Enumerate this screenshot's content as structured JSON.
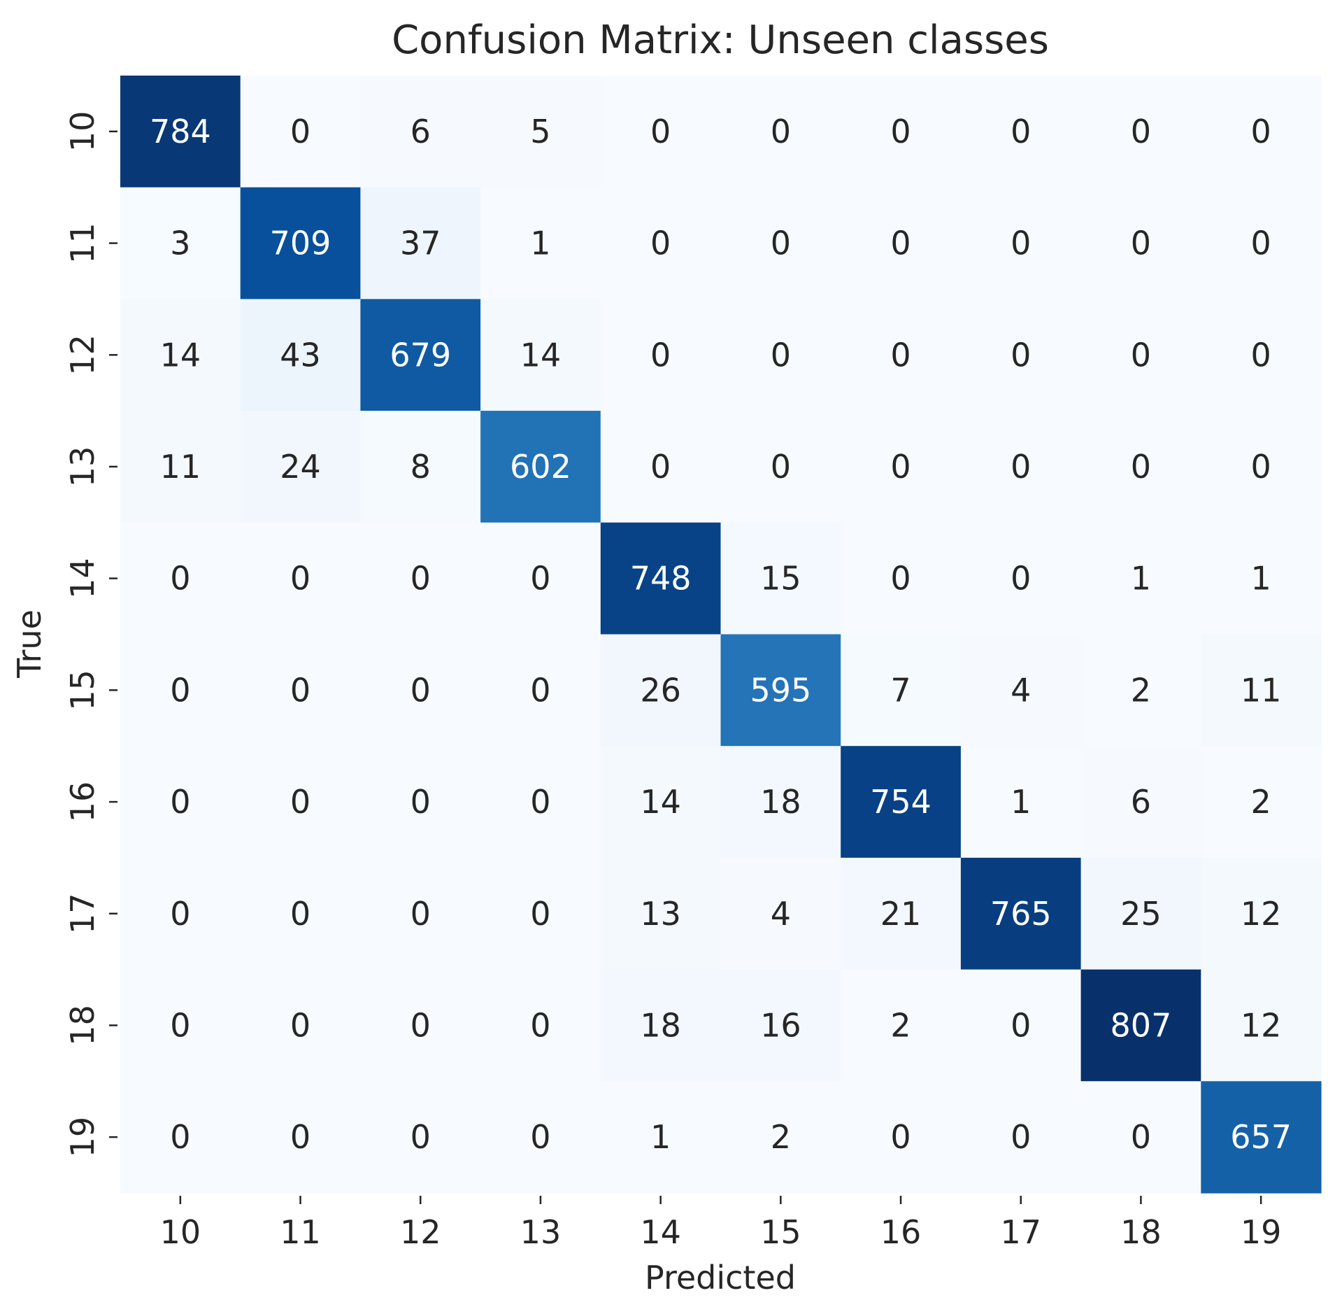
{
  "chart_data": {
    "type": "heatmap",
    "title": "Confusion Matrix: Unseen classes",
    "xlabel": "Predicted",
    "ylabel": "True",
    "x_categories": [
      "10",
      "11",
      "12",
      "13",
      "14",
      "15",
      "16",
      "17",
      "18",
      "19"
    ],
    "y_categories": [
      "10",
      "11",
      "12",
      "13",
      "14",
      "15",
      "16",
      "17",
      "18",
      "19"
    ],
    "values": [
      [
        784,
        0,
        6,
        5,
        0,
        0,
        0,
        0,
        0,
        0
      ],
      [
        3,
        709,
        37,
        1,
        0,
        0,
        0,
        0,
        0,
        0
      ],
      [
        14,
        43,
        679,
        14,
        0,
        0,
        0,
        0,
        0,
        0
      ],
      [
        11,
        24,
        8,
        602,
        0,
        0,
        0,
        0,
        0,
        0
      ],
      [
        0,
        0,
        0,
        0,
        748,
        15,
        0,
        0,
        1,
        1
      ],
      [
        0,
        0,
        0,
        0,
        26,
        595,
        7,
        4,
        2,
        11
      ],
      [
        0,
        0,
        0,
        0,
        14,
        18,
        754,
        1,
        6,
        2
      ],
      [
        0,
        0,
        0,
        0,
        13,
        4,
        21,
        765,
        25,
        12
      ],
      [
        0,
        0,
        0,
        0,
        18,
        16,
        2,
        0,
        807,
        12
      ],
      [
        0,
        0,
        0,
        0,
        1,
        2,
        0,
        0,
        0,
        657
      ]
    ],
    "colormap": "Blues",
    "value_range": [
      0,
      807
    ],
    "colorbar": false,
    "grid": false
  }
}
